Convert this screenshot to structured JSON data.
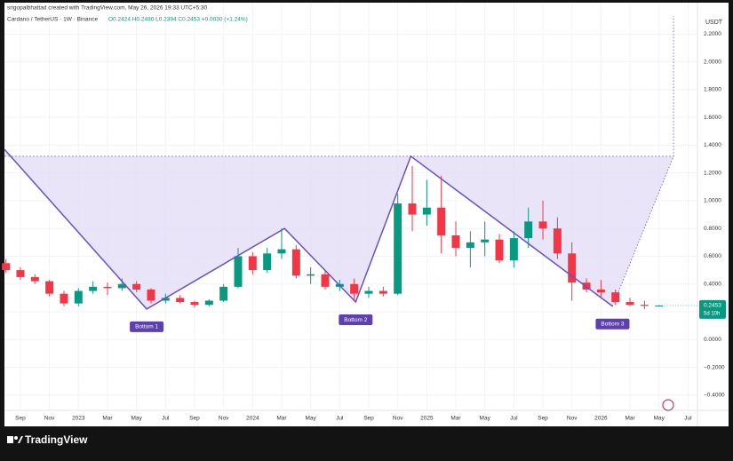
{
  "header": {
    "credit": "srigopalbhattad created with TradingView.com, May 26, 2026 19:33 UTC+5:30",
    "symbol": "Cardano / TetherUS · 1W · Binance",
    "ohlc": "O0.2424 H0.2480 L0.2394 C0.2453 +0.0030 (+1.24%)",
    "countdown": "5d 10h",
    "brand": "TradingView"
  },
  "chart_data": {
    "type": "candlestick",
    "currency": "USDT",
    "x": [
      -1,
      0,
      1,
      2,
      3,
      4,
      5,
      6,
      7,
      8,
      9,
      10,
      11,
      12,
      13,
      14,
      15,
      16,
      17,
      18,
      19,
      20,
      21,
      22,
      23,
      24,
      25,
      26,
      27,
      28,
      29,
      30,
      31,
      32,
      33,
      34,
      35,
      36,
      37,
      38,
      39,
      40,
      41,
      42,
      43,
      44
    ],
    "open": [
      0.55,
      0.5,
      0.45,
      0.42,
      0.33,
      0.26,
      0.35,
      0.38,
      0.37,
      0.4,
      0.36,
      0.28,
      0.3,
      0.27,
      0.25,
      0.28,
      0.38,
      0.6,
      0.5,
      0.62,
      0.65,
      0.46,
      0.47,
      0.38,
      0.4,
      0.33,
      0.35,
      0.33,
      0.98,
      0.9,
      0.95,
      0.75,
      0.66,
      0.7,
      0.72,
      0.57,
      0.73,
      0.85,
      0.8,
      0.62,
      0.41,
      0.36,
      0.34,
      0.27,
      0.25,
      0.2424
    ],
    "high": [
      0.58,
      0.52,
      0.47,
      0.43,
      0.35,
      0.37,
      0.42,
      0.41,
      0.44,
      0.42,
      0.37,
      0.33,
      0.32,
      0.28,
      0.29,
      0.4,
      0.66,
      0.63,
      0.66,
      0.8,
      0.68,
      0.52,
      0.5,
      0.43,
      0.44,
      0.38,
      0.38,
      1.05,
      1.25,
      1.15,
      1.18,
      0.85,
      0.78,
      0.85,
      0.76,
      0.78,
      0.95,
      1.0,
      0.88,
      0.7,
      0.44,
      0.43,
      0.36,
      0.3,
      0.28,
      0.248
    ],
    "low": [
      0.48,
      0.43,
      0.4,
      0.31,
      0.24,
      0.24,
      0.33,
      0.32,
      0.35,
      0.34,
      0.26,
      0.26,
      0.26,
      0.23,
      0.24,
      0.27,
      0.37,
      0.47,
      0.48,
      0.58,
      0.44,
      0.4,
      0.36,
      0.35,
      0.28,
      0.3,
      0.31,
      0.32,
      0.78,
      0.82,
      0.62,
      0.6,
      0.52,
      0.6,
      0.55,
      0.52,
      0.66,
      0.72,
      0.58,
      0.28,
      0.34,
      0.3,
      0.25,
      0.24,
      0.22,
      0.2394
    ],
    "close": [
      0.5,
      0.45,
      0.42,
      0.33,
      0.26,
      0.35,
      0.38,
      0.37,
      0.4,
      0.36,
      0.28,
      0.3,
      0.27,
      0.25,
      0.28,
      0.38,
      0.6,
      0.5,
      0.62,
      0.65,
      0.46,
      0.47,
      0.38,
      0.4,
      0.33,
      0.35,
      0.33,
      0.98,
      0.9,
      0.95,
      0.75,
      0.66,
      0.7,
      0.72,
      0.57,
      0.73,
      0.85,
      0.8,
      0.62,
      0.41,
      0.36,
      0.34,
      0.27,
      0.25,
      0.2424,
      0.2453
    ],
    "up_color": "#089981",
    "down_color": "#f23645",
    "pattern": {
      "x": [
        -1.1,
        8.7,
        18.2,
        23.1,
        26.9,
        40.8
      ],
      "y": [
        1.37,
        0.22,
        0.8,
        0.27,
        1.32,
        0.24
      ],
      "color": "#6a4fc7",
      "fill": "#e4ddf6"
    },
    "target": {
      "x": [
        40.8,
        45,
        45
      ],
      "y": [
        0.24,
        1.32,
        2.33
      ]
    },
    "neckline": 1.32,
    "bottom_labels": [
      "Bottom 1",
      "Bottom 2",
      "Bottom 3"
    ],
    "xlim": [
      -1.1,
      46.65
    ],
    "ylim": [
      -0.51,
      2.33
    ],
    "yticks": [
      {
        "value": -0.4,
        "label": "−0.4000"
      },
      {
        "value": -0.2,
        "label": "−0.2000"
      },
      {
        "value": 0,
        "label": "0.0000"
      },
      {
        "value": 0.2,
        "label": "0.2000"
      },
      {
        "value": 0.4,
        "label": "0.4000"
      },
      {
        "value": 0.6,
        "label": "0.6000"
      },
      {
        "value": 0.8,
        "label": "0.8000"
      },
      {
        "value": 1,
        "label": "1.0000"
      },
      {
        "value": 1.2,
        "label": "1.2000"
      },
      {
        "value": 1.4,
        "label": "1.4000"
      },
      {
        "value": 1.6,
        "label": "1.6000"
      },
      {
        "value": 1.8,
        "label": "1.8000"
      },
      {
        "value": 2,
        "label": "2.0000"
      },
      {
        "value": 2.2,
        "label": "2.2000"
      }
    ],
    "xticks": [
      {
        "value": 0,
        "label": "Sep"
      },
      {
        "value": 2,
        "label": "Nov"
      },
      {
        "value": 4,
        "label": "2023"
      },
      {
        "value": 6,
        "label": "Mar"
      },
      {
        "value": 8,
        "label": "May"
      },
      {
        "value": 10,
        "label": "Jul"
      },
      {
        "value": 12,
        "label": "Sep"
      },
      {
        "value": 14,
        "label": "Nov"
      },
      {
        "value": 16,
        "label": "2024"
      },
      {
        "value": 18,
        "label": "Mar"
      },
      {
        "value": 20,
        "label": "May"
      },
      {
        "value": 22,
        "label": "Jul"
      },
      {
        "value": 24,
        "label": "Sep"
      },
      {
        "value": 26,
        "label": "Nov"
      },
      {
        "value": 28,
        "label": "2025"
      },
      {
        "value": 30,
        "label": "Mar"
      },
      {
        "value": 32,
        "label": "May"
      },
      {
        "value": 34,
        "label": "Jul"
      },
      {
        "value": 36,
        "label": "Sep"
      },
      {
        "value": 38,
        "label": "Nov"
      },
      {
        "value": 40,
        "label": "2026"
      },
      {
        "value": 42,
        "label": "Mar"
      },
      {
        "value": 44,
        "label": "May"
      },
      {
        "value": 46,
        "label": "Jul"
      }
    ],
    "grid": true
  }
}
